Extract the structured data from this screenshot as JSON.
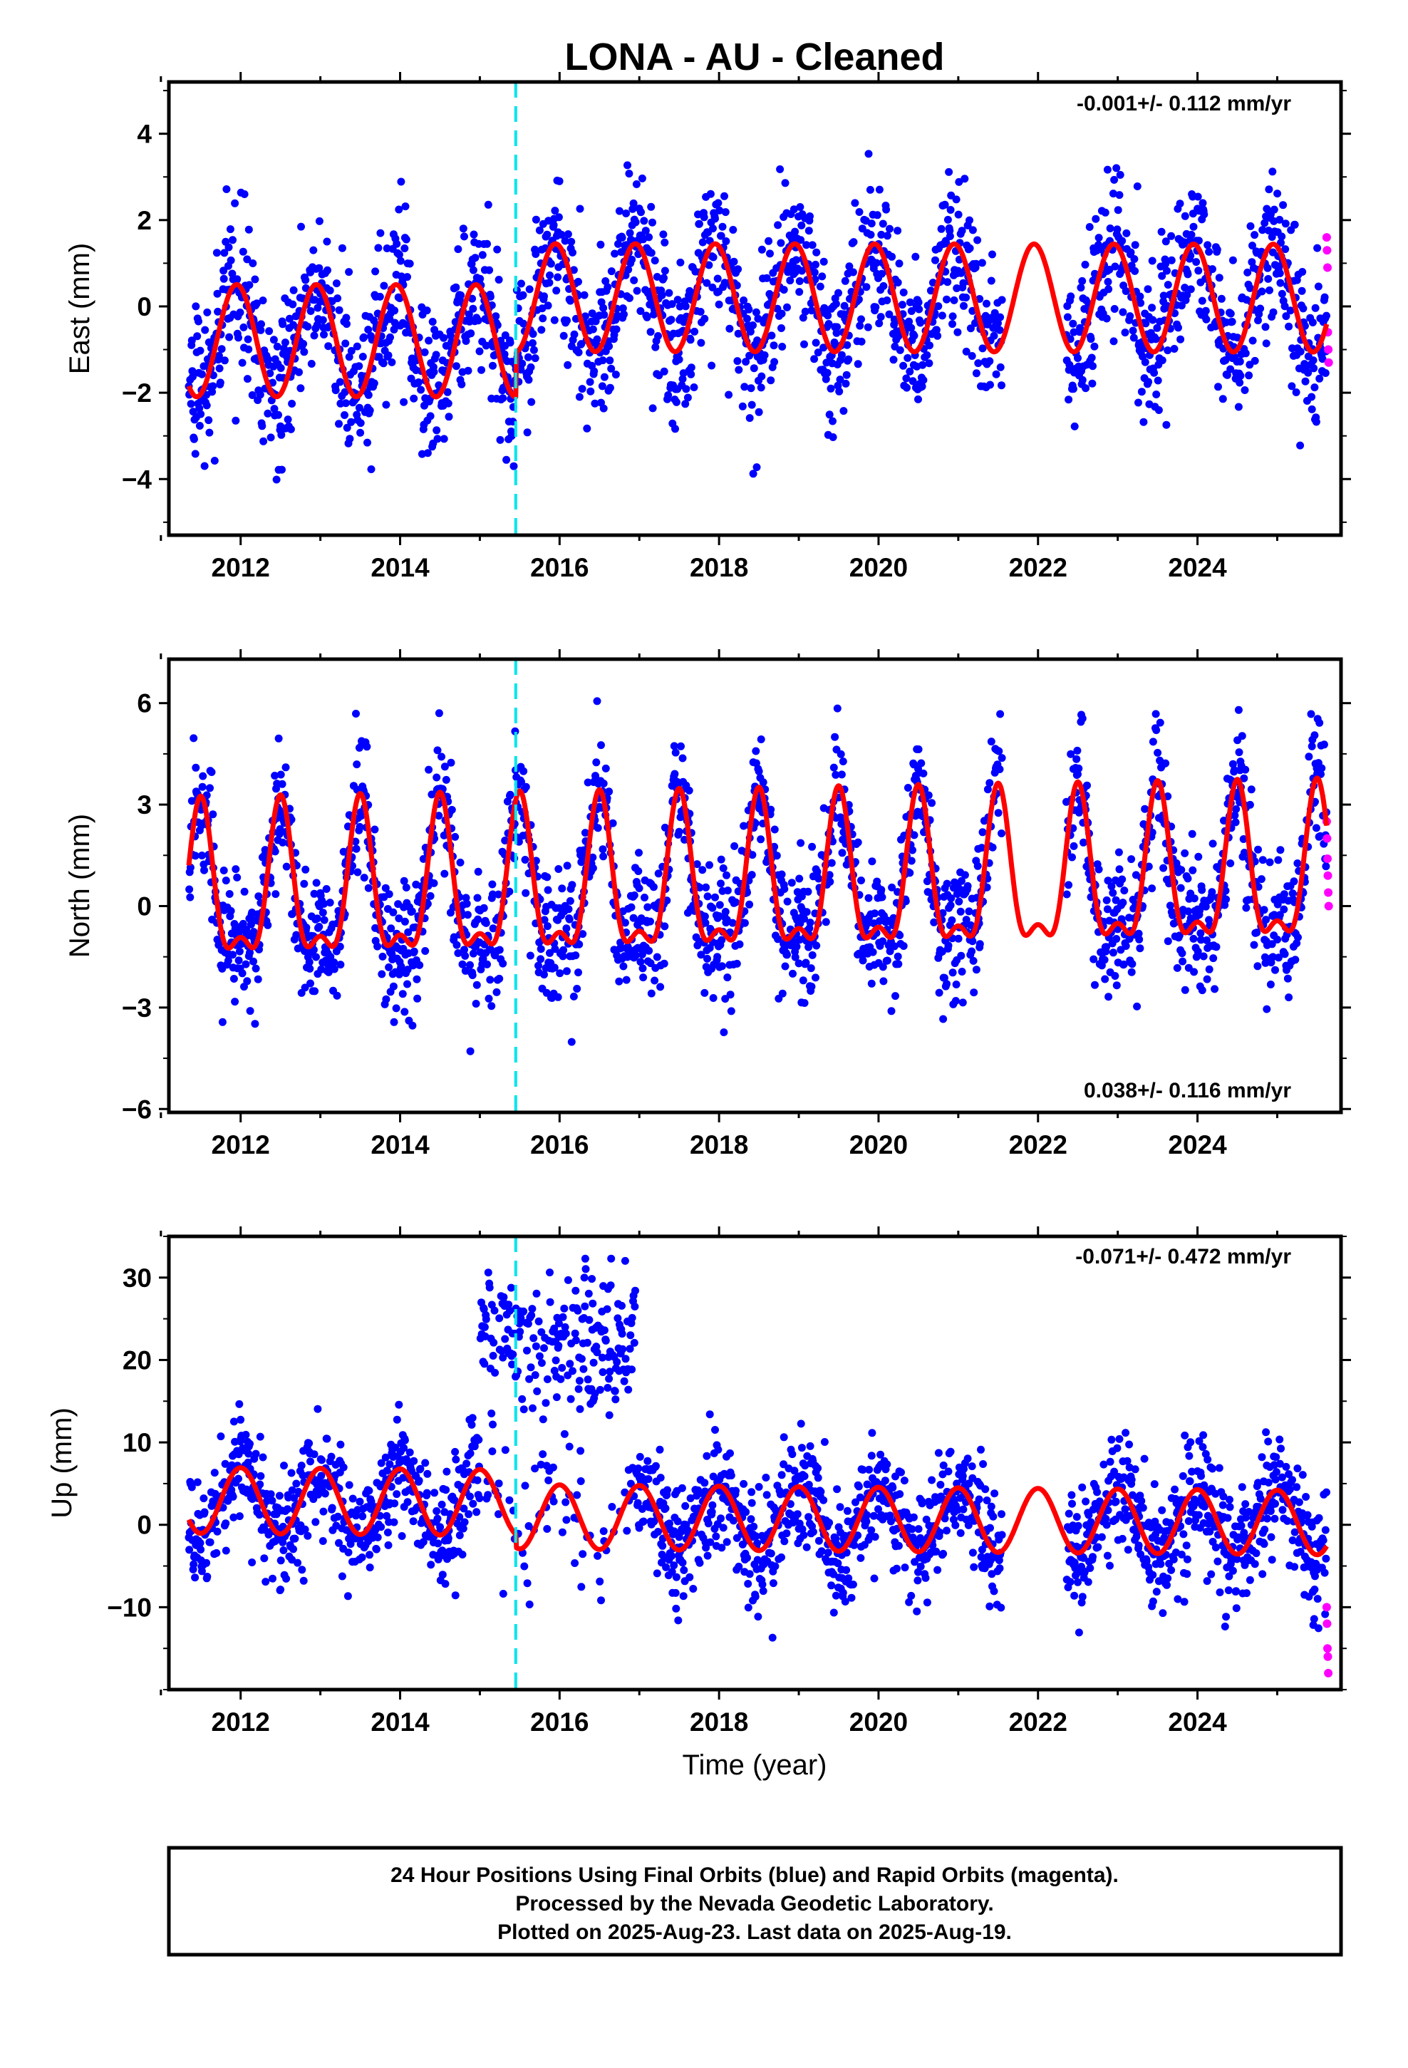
{
  "title": "LONA  - AU - Cleaned",
  "xlabel": "Time (year)",
  "footer": {
    "line1": "24 Hour Positions Using Final Orbits (blue) and Rapid Orbits (magenta).",
    "line2": "Processed by the Nevada Geodetic Laboratory.",
    "line3": "Plotted on 2025-Aug-23. Last data on 2025-Aug-19."
  },
  "colors": {
    "final_orbits": "#0000ff",
    "rapid_orbits": "#ff00ff",
    "model": "#ff0000",
    "equipment_change": "#00e5ee"
  },
  "chart_data": [
    {
      "type": "scatter",
      "component": "east",
      "ylabel": "East (mm)",
      "rate_label": "-0.001+/- 0.112 mm/yr",
      "rate_position": "top-right",
      "xlim": [
        2011.1,
        2025.8
      ],
      "ylim": [
        -5.3,
        5.2
      ],
      "xticks": [
        "2012",
        "2014",
        "2016",
        "2018",
        "2020",
        "2022",
        "2024"
      ],
      "yticks": [
        "4",
        "2",
        "0",
        "-2",
        "-4"
      ],
      "equipment_change_year": 2015.45,
      "data_span": [
        2011.35,
        2025.62
      ],
      "model": {
        "segments": [
          {
            "start": 2011.35,
            "end": 2015.45,
            "offset": -0.8,
            "amplitude": 1.3,
            "phase_year": 2011.95
          },
          {
            "start": 2015.45,
            "end": 2025.62,
            "offset": 0.2,
            "amplitude": 1.25,
            "phase_year": 2011.95
          }
        ],
        "trend_mm_per_yr": -0.001
      },
      "scatter_spread_mm": 0.9,
      "rapid_orbit_values": [
        1.6,
        1.3,
        0.9,
        -0.6,
        -1.0,
        -1.3
      ]
    },
    {
      "type": "scatter",
      "component": "north",
      "ylabel": "North (mm)",
      "rate_label": "0.038+/- 0.116 mm/yr",
      "rate_position": "bottom-right",
      "xlim": [
        2011.1,
        2025.8
      ],
      "ylim": [
        -6.1,
        7.3
      ],
      "xticks": [
        "2012",
        "2014",
        "2016",
        "2018",
        "2020",
        "2022",
        "2024"
      ],
      "yticks": [
        "6",
        "3",
        "0",
        "-3",
        "-6"
      ],
      "equipment_change_year": 2015.45,
      "data_span": [
        2011.35,
        2025.62
      ],
      "model": {
        "segments": [
          {
            "start": 2011.35,
            "end": 2025.62,
            "offset": 0.5,
            "amplitude": 2.1,
            "phase_year": 2011.5
          }
        ],
        "semiannual_amplitude": 0.9,
        "trend_mm_per_yr": 0.038
      },
      "scatter_spread_mm": 1.0,
      "rapid_orbit_values": [
        2.5,
        2.0,
        1.4,
        0.9,
        0.4,
        0.0
      ]
    },
    {
      "type": "scatter",
      "component": "up",
      "ylabel": "Up (mm)",
      "rate_label": "-0.071+/- 0.472 mm/yr",
      "rate_position": "top-right",
      "xlim": [
        2011.1,
        2025.8
      ],
      "ylim": [
        -20,
        35
      ],
      "xticks": [
        "2012",
        "2014",
        "2016",
        "2018",
        "2020",
        "2022",
        "2024"
      ],
      "yticks": [
        "30",
        "20",
        "10",
        "0",
        "-10"
      ],
      "equipment_change_year": 2015.45,
      "data_span": [
        2011.35,
        2025.62
      ],
      "model": {
        "segments": [
          {
            "start": 2011.35,
            "end": 2015.45,
            "offset": 2.5,
            "amplitude": 4.0,
            "phase_year": 2012.0
          },
          {
            "start": 2015.45,
            "end": 2025.62,
            "offset": 0.8,
            "amplitude": 3.9,
            "phase_year": 2012.0
          }
        ],
        "trend_mm_per_yr": -0.071
      },
      "scatter_spread_mm": 3.5,
      "anomaly": {
        "start": 2015.0,
        "end": 2016.95,
        "offset_mm": 22,
        "spread_mm": 4.5
      },
      "rapid_orbit_values": [
        -10,
        -12,
        -15,
        -16,
        -18
      ]
    }
  ]
}
